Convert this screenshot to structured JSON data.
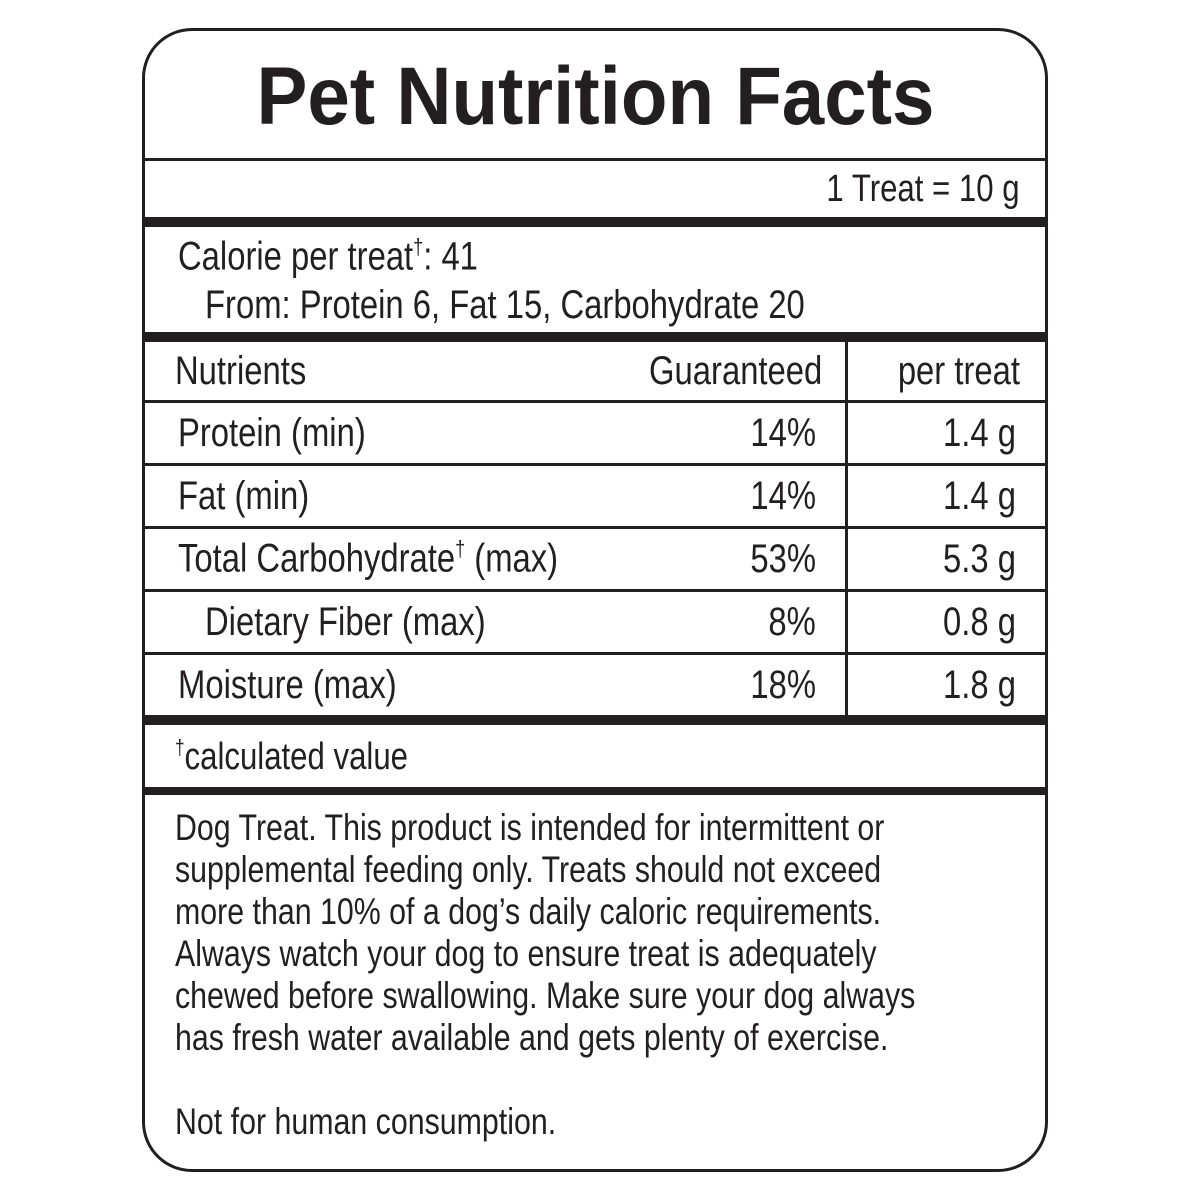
{
  "title": "Pet Nutrition Facts",
  "serving": "1 Treat = 10 g",
  "calories": {
    "label": "Calorie per treat",
    "note": "†",
    "value": ": 41",
    "from": "From: Protein 6, Fat 15, Carbohydrate 20"
  },
  "table": {
    "header": [
      "Nutrients",
      "Guaranteed",
      "per treat"
    ],
    "rows": [
      {
        "name": "Protein (min)",
        "guaranteed": "14%",
        "per_treat": "1.4 g"
      },
      {
        "name": "Fat (min)",
        "guaranteed": "14%",
        "per_treat": "1.4 g"
      },
      {
        "name": "Total Carbohydrate",
        "note": "†",
        "name_rest": " (max)",
        "guaranteed": "53%",
        "per_treat": "5.3 g"
      },
      {
        "name": "Dietary Fiber (max)",
        "guaranteed": "8%",
        "per_treat": "0.8 g"
      },
      {
        "name": "Moisture (max)",
        "guaranteed": "18%",
        "per_treat": "1.8 g"
      }
    ]
  },
  "footnote": {
    "note": "†",
    "text": "calculated value"
  },
  "statement": {
    "lines": [
      "Dog Treat. This product is intended for intermittent or",
      "supplemental feeding only. Treats should not exceed",
      "more than 10% of a dog’s daily caloric requirements.",
      "Always watch your dog to ensure treat is adequately",
      "chewed before swallowing. Make sure your dog always",
      "has fresh water available and gets plenty of exercise."
    ],
    "closing": "Not for human consumption."
  }
}
